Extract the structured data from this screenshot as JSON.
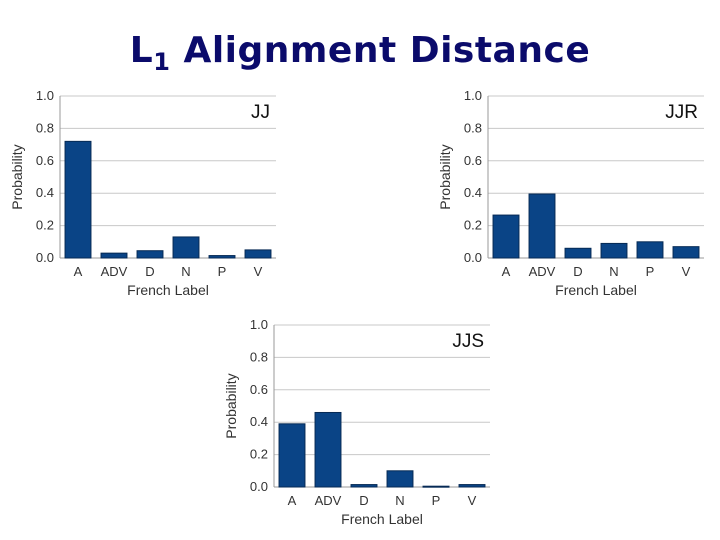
{
  "slide": {
    "title_main": "L",
    "title_sub": "1",
    "title_rest": " Alignment Distance"
  },
  "colors": {
    "bar_fill": "#0a4486",
    "bar_stroke": "#062a55",
    "grid": "#c8c8c8",
    "axis": "#999999",
    "title": "#0b0b6b"
  },
  "chart_data": [
    {
      "type": "bar",
      "label": "JJ",
      "categories": [
        "A",
        "ADV",
        "D",
        "N",
        "P",
        "V"
      ],
      "values": [
        0.72,
        0.03,
        0.045,
        0.13,
        0.015,
        0.05
      ],
      "ylim": [
        0,
        1.0
      ],
      "yticks": [
        "0.0",
        "0.2",
        "0.4",
        "0.6",
        "0.8",
        "1.0"
      ],
      "xlabel": "French Label",
      "ylabel": "Probability",
      "grid": true
    },
    {
      "type": "bar",
      "label": "JJR",
      "categories": [
        "A",
        "ADV",
        "D",
        "N",
        "P",
        "V"
      ],
      "values": [
        0.265,
        0.395,
        0.06,
        0.09,
        0.1,
        0.07
      ],
      "ylim": [
        0,
        1.0
      ],
      "yticks": [
        "0.0",
        "0.2",
        "0.4",
        "0.6",
        "0.8",
        "1.0"
      ],
      "xlabel": "French Label",
      "ylabel": "Probability",
      "grid": true
    },
    {
      "type": "bar",
      "label": "JJS",
      "categories": [
        "A",
        "ADV",
        "D",
        "N",
        "P",
        "V"
      ],
      "values": [
        0.39,
        0.46,
        0.015,
        0.1,
        0.005,
        0.015
      ],
      "ylim": [
        0,
        1.0
      ],
      "yticks": [
        "0.0",
        "0.2",
        "0.4",
        "0.6",
        "0.8",
        "1.0"
      ],
      "xlabel": "French Label",
      "ylabel": "Probability",
      "grid": true
    }
  ]
}
